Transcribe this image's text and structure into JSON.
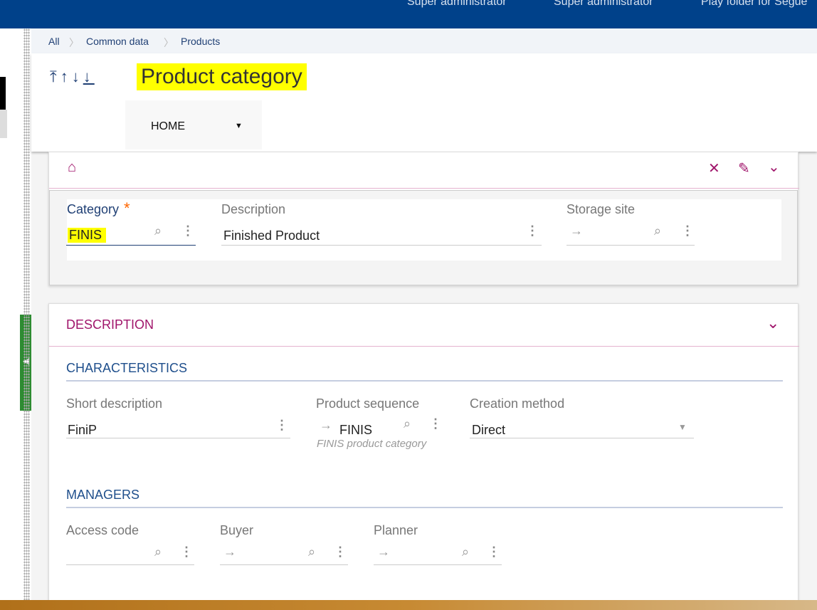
{
  "topbar": {
    "items": [
      "Super administrator",
      "Super administrator",
      "Play folder for Segue"
    ],
    "color": "#00418a"
  },
  "breadcrumb": [
    "All",
    "Common data",
    "Products"
  ],
  "header": {
    "title": "Product category",
    "nav_icons": [
      "first-icon",
      "previous-icon",
      "next-icon",
      "last-icon"
    ],
    "home_menu": "HOME"
  },
  "record": {
    "category": {
      "label": "Category",
      "required": "*",
      "value": "FINIS"
    },
    "description": {
      "label": "Description",
      "value": "Finished Product"
    },
    "storage_site": {
      "label": "Storage site",
      "value": ""
    }
  },
  "description_section": {
    "title": "DESCRIPTION",
    "characteristics": {
      "title": "CHARACTERISTICS",
      "short_description": {
        "label": "Short description",
        "value": "FiniP"
      },
      "product_sequence": {
        "label": "Product sequence",
        "value": "FINIS",
        "hint": "FINIS product category"
      },
      "creation_method": {
        "label": "Creation method",
        "value": "Direct"
      }
    },
    "managers": {
      "title": "MANAGERS",
      "access_code": {
        "label": "Access code",
        "value": ""
      },
      "buyer": {
        "label": "Buyer",
        "value": ""
      },
      "planner": {
        "label": "Planner",
        "value": ""
      }
    }
  },
  "colors": {
    "accent": "#a0156b",
    "primary": "#1f4f8c"
  }
}
